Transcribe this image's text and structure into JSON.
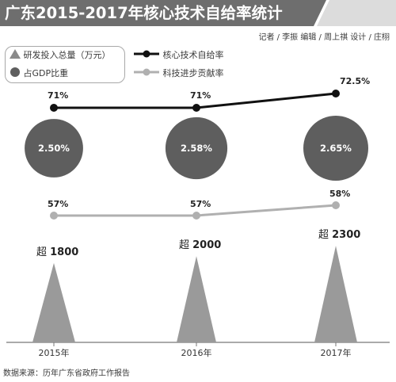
{
  "header": {
    "title": "广东2015-2017年核心技术自给率统计",
    "credits": "记者 / 李振  编辑 / 周上祺  设计 / 庄栩"
  },
  "legend": {
    "items": [
      {
        "label": "研发投入总量（万元）",
        "icon": "triangle-icon"
      },
      {
        "label": "核心技术自给率",
        "icon": "dark-line-marker-icon"
      },
      {
        "label": "占GDP比重",
        "icon": "dark-circle-icon"
      },
      {
        "label": "科技进步贡献率",
        "icon": "light-line-marker-icon"
      }
    ]
  },
  "footer": {
    "source": "数据来源：历年广东省政府工作报告"
  },
  "colors": {
    "title_band": "#6e6e6e",
    "dark_series": "#111111",
    "light_series": "#b0b0b0",
    "circle_fill": "#5e5e5e",
    "triangle_fill": "#9a9a9a"
  },
  "chart_data": {
    "type": "mixed",
    "title": "广东2015-2017年核心技术自给率统计",
    "categories": [
      "2015年",
      "2016年",
      "2017年"
    ],
    "series": [
      {
        "name": "核心技术自给率",
        "type": "line",
        "values": [
          71,
          71,
          72.5
        ],
        "labels": [
          "71%",
          "71%",
          "72.5%"
        ]
      },
      {
        "name": "占GDP比重",
        "type": "bubble",
        "values": [
          2.5,
          2.58,
          2.65
        ],
        "labels": [
          "2.50%",
          "2.58%",
          "2.65%"
        ]
      },
      {
        "name": "科技进步贡献率",
        "type": "line",
        "values": [
          57,
          57,
          58
        ],
        "labels": [
          "57%",
          "57%",
          "58%"
        ]
      },
      {
        "name": "研发投入总量（万元）",
        "type": "triangle",
        "values": [
          1800,
          2000,
          2300
        ],
        "prefix": "超",
        "labels": [
          "1800",
          "2000",
          "2300"
        ]
      }
    ],
    "grid": false,
    "legend_position": "top-left"
  }
}
